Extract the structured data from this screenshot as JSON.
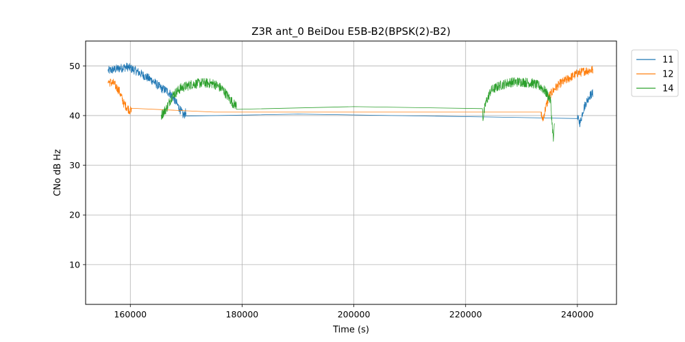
{
  "chart_data": {
    "type": "line",
    "title": "Z3R ant_0 BeiDou E5B-B2(BPSK(2)-B2)",
    "xlabel": "Time (s)",
    "ylabel": "CNo dB Hz",
    "xlim": [
      152000,
      247000
    ],
    "ylim": [
      2,
      55
    ],
    "xticks": [
      160000,
      180000,
      200000,
      220000,
      240000
    ],
    "yticks": [
      10,
      20,
      30,
      40,
      50
    ],
    "grid": true,
    "legend_placement": "upper-right-outside",
    "series": [
      {
        "name": "11",
        "color": "#1f77b4",
        "noise": 0.9,
        "points": [
          [
            156000,
            49.0
          ],
          [
            158000,
            49.5
          ],
          [
            159500,
            49.8
          ],
          [
            161000,
            49.0
          ],
          [
            162500,
            48.0
          ],
          [
            164000,
            47.0
          ],
          [
            165500,
            45.5
          ],
          [
            166500,
            45.0
          ],
          [
            167500,
            44.0
          ],
          [
            168500,
            42.0
          ],
          [
            169500,
            40.0
          ],
          [
            170000,
            40.7
          ],
          [
            190000,
            40.3
          ],
          [
            225000,
            39.7
          ],
          [
            240000,
            39.4
          ],
          [
            240500,
            38.5
          ],
          [
            241000,
            41.0
          ],
          [
            241500,
            42.5
          ],
          [
            242200,
            44.0
          ],
          [
            242800,
            44.5
          ]
        ]
      },
      {
        "name": "12",
        "color": "#ff7f0e",
        "noise": 0.9,
        "points": [
          [
            156000,
            46.8
          ],
          [
            157000,
            46.5
          ],
          [
            158000,
            45.0
          ],
          [
            158800,
            42.5
          ],
          [
            159500,
            41.5
          ],
          [
            160000,
            41.0
          ],
          [
            160200,
            40.8
          ],
          [
            175000,
            40.7
          ],
          [
            200000,
            40.7
          ],
          [
            233500,
            40.7
          ],
          [
            233800,
            39.0
          ],
          [
            234300,
            41.5
          ],
          [
            235000,
            44.0
          ],
          [
            236000,
            45.5
          ],
          [
            237000,
            46.5
          ],
          [
            238500,
            47.5
          ],
          [
            240000,
            48.5
          ],
          [
            241500,
            49.0
          ],
          [
            242800,
            49.2
          ]
        ]
      },
      {
        "name": "14",
        "color": "#2ca02c",
        "noise": 1.0,
        "points": [
          [
            165500,
            40.0
          ],
          [
            166500,
            41.5
          ],
          [
            167500,
            44.0
          ],
          [
            169000,
            45.5
          ],
          [
            171000,
            46.3
          ],
          [
            173000,
            46.6
          ],
          [
            175000,
            46.4
          ],
          [
            176500,
            45.3
          ],
          [
            177500,
            43.8
          ],
          [
            178500,
            42.3
          ],
          [
            179000,
            42.1
          ],
          [
            200000,
            41.8
          ],
          [
            223000,
            41.4
          ],
          [
            223100,
            39.5
          ],
          [
            223600,
            42.5
          ],
          [
            224500,
            45.0
          ],
          [
            226000,
            46.0
          ],
          [
            228000,
            46.7
          ],
          [
            230000,
            46.8
          ],
          [
            232000,
            46.5
          ],
          [
            233500,
            45.8
          ],
          [
            234500,
            44.5
          ],
          [
            235200,
            43.0
          ],
          [
            235500,
            38.0
          ],
          [
            235700,
            35.0
          ],
          [
            235900,
            38.0
          ]
        ]
      }
    ]
  }
}
